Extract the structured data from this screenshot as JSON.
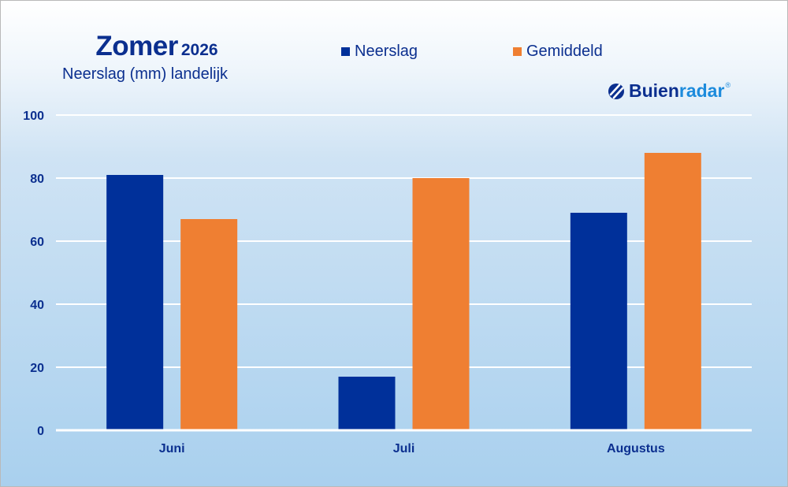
{
  "header": {
    "title": "Zomer",
    "year": "2026",
    "subtitle": "Neerslag (mm) landelijk"
  },
  "brand": {
    "name_part1": "Buien",
    "name_part2": "radar",
    "registered": "®",
    "icon": "buienradar-logo-icon"
  },
  "colors": {
    "neerslag": "#00309a",
    "gemiddeld": "#ef7f32",
    "text": "#0b2f8f",
    "grid": "#ffffff"
  },
  "chart_data": {
    "type": "bar",
    "categories": [
      "Juni",
      "Juli",
      "Augustus"
    ],
    "series": [
      {
        "name": "Neerslag",
        "values": [
          81,
          17,
          69
        ]
      },
      {
        "name": "Gemiddeld",
        "values": [
          67,
          80,
          88
        ]
      }
    ],
    "title": "Zomer 2026",
    "subtitle": "Neerslag (mm) landelijk",
    "xlabel": "",
    "ylabel": "",
    "ylim": [
      0,
      100
    ],
    "yticks": [
      0,
      20,
      40,
      60,
      80,
      100
    ],
    "grid": true,
    "legend": "top"
  }
}
